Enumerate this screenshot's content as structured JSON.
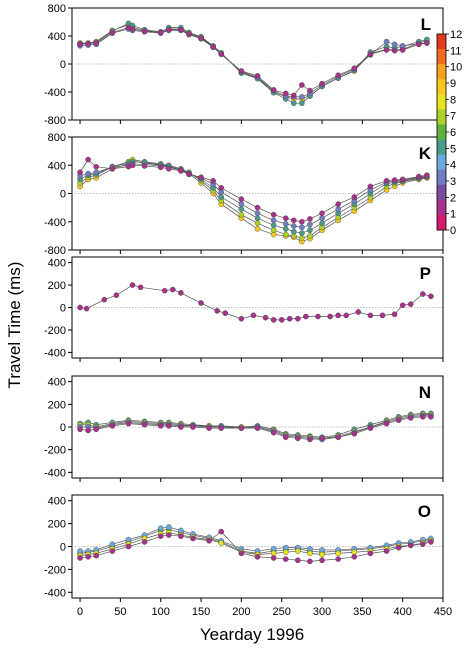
{
  "chart_data": [
    {
      "type": "scatter",
      "panel": "L",
      "xlim": [
        -10,
        450
      ],
      "ylim": [
        -800,
        800
      ],
      "yticks": [
        800,
        400,
        0,
        -400,
        -800
      ],
      "yticklabels": [
        "800",
        "400",
        "0",
        "-400",
        "-800"
      ],
      "ylabel_shared": "Travel Time (ms)",
      "x": [
        0,
        10,
        20,
        40,
        60,
        65,
        80,
        100,
        110,
        125,
        135,
        150,
        165,
        175,
        200,
        220,
        240,
        255,
        265,
        275,
        285,
        300,
        320,
        340,
        360,
        380,
        390,
        400,
        420,
        430
      ],
      "series": [
        {
          "color_value": 9,
          "values": [
            300,
            300,
            320,
            480,
            560,
            520,
            480,
            450,
            500,
            500,
            440,
            380,
            250,
            150,
            -120,
            -200,
            -400,
            -470,
            -500,
            -500,
            -450,
            -320,
            -200,
            -100,
            150,
            210,
            200,
            210,
            300,
            330
          ]
        },
        {
          "color_value": 5,
          "values": [
            290,
            290,
            310,
            470,
            580,
            550,
            490,
            460,
            520,
            520,
            450,
            390,
            260,
            160,
            -130,
            -210,
            -410,
            -500,
            -560,
            -560,
            -460,
            -320,
            -200,
            -90,
            170,
            250,
            230,
            250,
            320,
            350
          ]
        },
        {
          "color_value": 3,
          "values": [
            260,
            270,
            280,
            440,
            500,
            480,
            460,
            440,
            480,
            480,
            420,
            360,
            240,
            140,
            -110,
            -190,
            -380,
            -460,
            -470,
            -470,
            -420,
            -300,
            -180,
            -70,
            130,
            320,
            280,
            260,
            290,
            300
          ]
        },
        {
          "color_value": 1,
          "values": [
            280,
            290,
            300,
            450,
            520,
            500,
            470,
            450,
            490,
            490,
            430,
            370,
            240,
            140,
            -100,
            -170,
            -370,
            -420,
            -450,
            -300,
            -380,
            -280,
            -160,
            -60,
            140,
            200,
            190,
            200,
            280,
            300
          ]
        }
      ]
    },
    {
      "type": "scatter",
      "panel": "K",
      "xlim": [
        -10,
        450
      ],
      "ylim": [
        -800,
        800
      ],
      "yticks": [
        800,
        400,
        0,
        -400,
        -800
      ],
      "yticklabels": [
        "800",
        "400",
        "0",
        "-400",
        "-800"
      ],
      "x": [
        0,
        10,
        20,
        40,
        60,
        65,
        80,
        100,
        110,
        125,
        135,
        150,
        165,
        175,
        200,
        220,
        240,
        255,
        265,
        275,
        285,
        300,
        320,
        340,
        360,
        380,
        390,
        400,
        420,
        430
      ],
      "series": [
        {
          "color_value": 9,
          "values": [
            100,
            200,
            220,
            350,
            420,
            460,
            430,
            400,
            380,
            330,
            280,
            150,
            0,
            -150,
            -350,
            -500,
            -580,
            -600,
            -620,
            -680,
            -640,
            -520,
            -380,
            -250,
            -100,
            50,
            100,
            150,
            200,
            220
          ]
        },
        {
          "color_value": 7,
          "values": [
            150,
            230,
            260,
            380,
            450,
            480,
            450,
            420,
            400,
            350,
            300,
            180,
            40,
            -100,
            -300,
            -420,
            -520,
            -580,
            -600,
            -630,
            -600,
            -480,
            -340,
            -200,
            -60,
            100,
            140,
            170,
            210,
            230
          ]
        },
        {
          "color_value": 5,
          "values": [
            200,
            260,
            280,
            380,
            430,
            450,
            440,
            410,
            390,
            340,
            290,
            200,
            80,
            -50,
            -220,
            -350,
            -450,
            -500,
            -540,
            -560,
            -520,
            -420,
            -280,
            -150,
            0,
            140,
            160,
            180,
            220,
            240
          ]
        },
        {
          "color_value": 3,
          "values": [
            250,
            280,
            300,
            370,
            400,
            420,
            410,
            390,
            370,
            330,
            280,
            220,
            130,
            20,
            -150,
            -280,
            -380,
            -430,
            -460,
            -480,
            -440,
            -350,
            -220,
            -100,
            50,
            160,
            180,
            190,
            230,
            250
          ]
        },
        {
          "color_value": 1,
          "values": [
            300,
            480,
            380,
            350,
            380,
            400,
            390,
            370,
            350,
            320,
            270,
            230,
            180,
            80,
            -80,
            -200,
            -300,
            -350,
            -380,
            -400,
            -360,
            -280,
            -150,
            -50,
            100,
            180,
            190,
            200,
            240,
            260
          ]
        }
      ]
    },
    {
      "type": "scatter",
      "panel": "P",
      "xlim": [
        -10,
        450
      ],
      "ylim": [
        -450,
        450
      ],
      "yticks": [
        400,
        200,
        0,
        -200,
        -400
      ],
      "yticklabels": [
        "400",
        "200",
        "0",
        "-200",
        "-400"
      ],
      "x": [
        0,
        8,
        30,
        45,
        65,
        75,
        105,
        115,
        125,
        150,
        170,
        180,
        200,
        215,
        230,
        240,
        250,
        260,
        270,
        280,
        295,
        310,
        320,
        330,
        345,
        360,
        375,
        390,
        400,
        410,
        425,
        435
      ],
      "series": [
        {
          "color_value": 1,
          "values": [
            0,
            -10,
            70,
            110,
            200,
            180,
            150,
            160,
            130,
            40,
            -30,
            -50,
            -100,
            -70,
            -90,
            -110,
            -110,
            -100,
            -100,
            -80,
            -80,
            -80,
            -70,
            -70,
            -40,
            -70,
            -70,
            -60,
            20,
            30,
            120,
            100
          ]
        }
      ]
    },
    {
      "type": "scatter",
      "panel": "N",
      "xlim": [
        -10,
        450
      ],
      "ylim": [
        -450,
        450
      ],
      "yticks": [
        400,
        200,
        0,
        -200,
        -400
      ],
      "yticklabels": [
        "400",
        "200",
        "0",
        "-200",
        "-400"
      ],
      "x": [
        0,
        10,
        20,
        40,
        60,
        80,
        100,
        110,
        125,
        140,
        160,
        175,
        200,
        220,
        240,
        255,
        270,
        285,
        300,
        320,
        340,
        360,
        380,
        395,
        410,
        425,
        435
      ],
      "series": [
        {
          "color_value": 5,
          "values": [
            30,
            40,
            20,
            40,
            60,
            50,
            40,
            40,
            30,
            20,
            10,
            10,
            0,
            10,
            -20,
            -60,
            -70,
            -80,
            -90,
            -70,
            -20,
            20,
            60,
            90,
            110,
            120,
            120
          ]
        },
        {
          "color_value": 7,
          "values": [
            20,
            20,
            0,
            30,
            50,
            40,
            30,
            30,
            20,
            10,
            10,
            0,
            0,
            0,
            -30,
            -70,
            -80,
            -90,
            -100,
            -80,
            -40,
            0,
            50,
            80,
            100,
            110,
            110
          ]
        },
        {
          "color_value": 3,
          "values": [
            0,
            0,
            -10,
            20,
            40,
            30,
            20,
            20,
            10,
            10,
            0,
            0,
            -10,
            0,
            -40,
            -80,
            -90,
            -100,
            -110,
            -90,
            -50,
            0,
            40,
            70,
            90,
            100,
            100
          ]
        },
        {
          "color_value": 1,
          "values": [
            -20,
            -30,
            -20,
            10,
            30,
            20,
            10,
            10,
            0,
            0,
            -10,
            -10,
            -10,
            -10,
            -50,
            -90,
            -100,
            -110,
            -100,
            -90,
            -60,
            -10,
            30,
            60,
            80,
            90,
            90
          ]
        }
      ]
    },
    {
      "type": "scatter",
      "panel": "O",
      "xlim": [
        -10,
        450
      ],
      "ylim": [
        -450,
        450
      ],
      "yticks": [
        400,
        200,
        0,
        -200,
        -400
      ],
      "yticklabels": [
        "400",
        "200",
        "0",
        "-200",
        "-400"
      ],
      "xticks": [
        0,
        50,
        100,
        150,
        200,
        250,
        300,
        350,
        400,
        450
      ],
      "xticklabels": [
        "0",
        "50",
        "100",
        "150",
        "200",
        "250",
        "300",
        "350",
        "400",
        "450"
      ],
      "xlabel_shared": "Yearday 1996",
      "x": [
        0,
        10,
        20,
        40,
        60,
        80,
        100,
        110,
        125,
        140,
        160,
        175,
        200,
        220,
        240,
        255,
        270,
        285,
        300,
        320,
        340,
        360,
        380,
        395,
        410,
        425,
        435
      ],
      "series": [
        {
          "color_value": 6,
          "values": [
            -60,
            -50,
            -40,
            0,
            40,
            90,
            140,
            150,
            120,
            100,
            70,
            40,
            -40,
            -60,
            -40,
            -30,
            -20,
            -40,
            -50,
            -40,
            -30,
            -20,
            0,
            20,
            30,
            50,
            60
          ]
        },
        {
          "color_value": 4,
          "values": [
            -40,
            -40,
            -30,
            20,
            60,
            100,
            160,
            170,
            140,
            110,
            80,
            50,
            -20,
            -40,
            -20,
            -10,
            -10,
            -20,
            -30,
            -30,
            -20,
            -10,
            10,
            30,
            40,
            60,
            70
          ]
        },
        {
          "color_value": 8,
          "values": [
            -80,
            -70,
            -60,
            -20,
            20,
            70,
            110,
            120,
            100,
            80,
            60,
            30,
            -50,
            -70,
            -60,
            -50,
            -40,
            -60,
            -70,
            -60,
            -50,
            -40,
            -20,
            0,
            10,
            30,
            50
          ]
        },
        {
          "color_value": 1,
          "values": [
            -100,
            -90,
            -80,
            -40,
            0,
            40,
            90,
            100,
            90,
            70,
            50,
            130,
            -60,
            -90,
            -100,
            -110,
            -120,
            -130,
            -120,
            -110,
            -90,
            -60,
            -40,
            -10,
            10,
            20,
            40
          ]
        }
      ]
    }
  ],
  "colorbar": {
    "ticks": [
      "12",
      "11",
      "10",
      "9",
      "8",
      "7",
      "6",
      "5",
      "4",
      "3",
      "2",
      "1",
      "0"
    ],
    "colors": [
      "#e53a1e",
      "#f06a1e",
      "#f5a21e",
      "#f7c81e",
      "#e9e21e",
      "#aed12c",
      "#5fb33d",
      "#4a9c88",
      "#6aa9dc",
      "#6f7fc2",
      "#7a4e9c",
      "#a6328a",
      "#d61a6e"
    ]
  }
}
